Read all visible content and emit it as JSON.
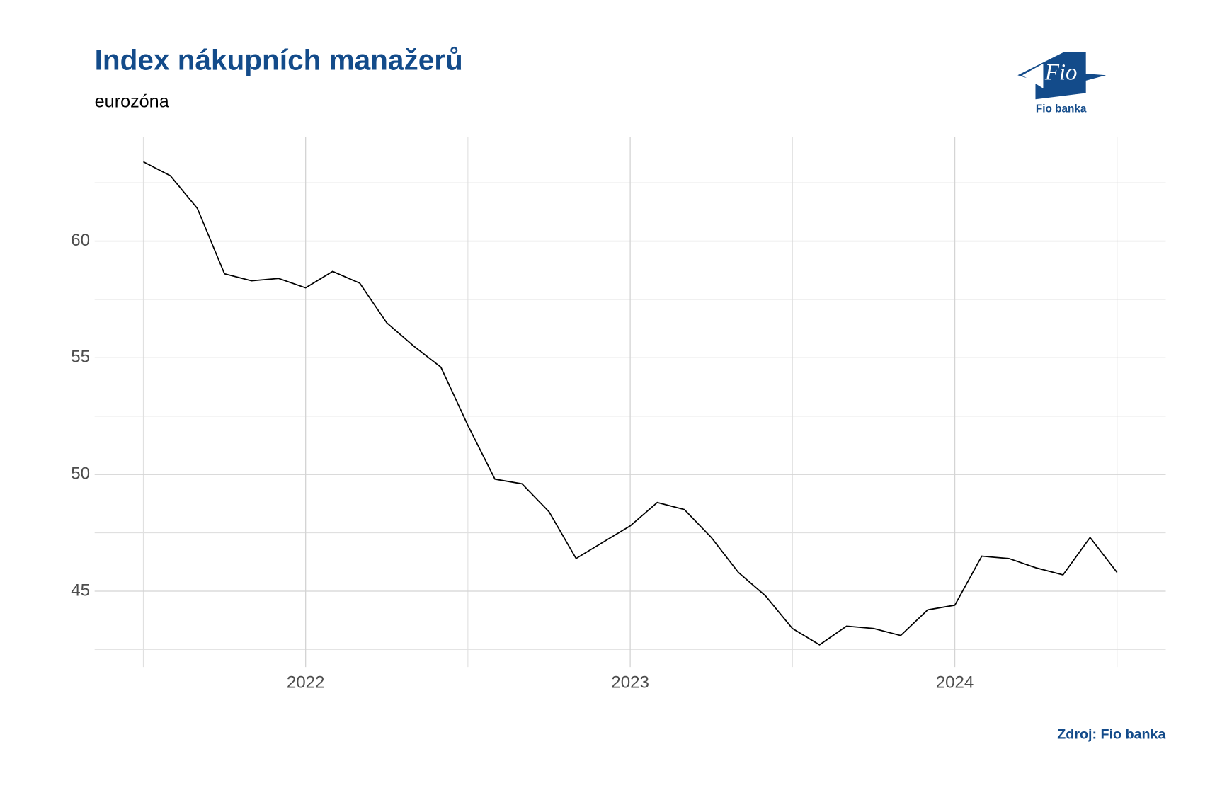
{
  "chart_data": {
    "type": "line",
    "title": "Index nákupních manažerů",
    "subtitle": "eurozóna",
    "source": "Zdroj: Fio banka",
    "logo": {
      "mark": "Fio",
      "name": "Fio banka"
    },
    "x": [
      2021.5,
      2021.5833,
      2021.6667,
      2021.75,
      2021.8333,
      2021.9167,
      2022,
      2022.0833,
      2022.1667,
      2022.25,
      2022.3333,
      2022.4167,
      2022.5,
      2022.5833,
      2022.6667,
      2022.75,
      2022.8333,
      2022.9167,
      2023,
      2023.0833,
      2023.1667,
      2023.25,
      2023.3333,
      2023.4167,
      2023.5,
      2023.5833,
      2023.6667,
      2023.75,
      2023.8333,
      2023.9167,
      2024,
      2024.0833,
      2024.1667,
      2024.25,
      2024.3333,
      2024.4167,
      2024.5
    ],
    "series": [
      {
        "color": "#000000",
        "values": [
          63.4,
          62.8,
          61.4,
          58.6,
          58.3,
          58.4,
          58.0,
          58.7,
          58.2,
          56.5,
          55.5,
          54.6,
          52.1,
          49.8,
          49.6,
          48.4,
          46.4,
          47.1,
          47.8,
          48.8,
          48.5,
          47.3,
          45.8,
          44.8,
          43.4,
          42.7,
          43.5,
          43.4,
          43.1,
          44.2,
          44.4,
          46.5,
          46.4,
          46.0,
          45.7,
          47.3,
          45.8
        ]
      }
    ],
    "xlim": [
      2021.35,
      2024.65
    ],
    "xticks": [
      2022,
      2023,
      2024
    ],
    "ylim": [
      41.75,
      64.45
    ],
    "yticks": [
      45,
      50,
      55,
      60
    ],
    "grid": true
  }
}
